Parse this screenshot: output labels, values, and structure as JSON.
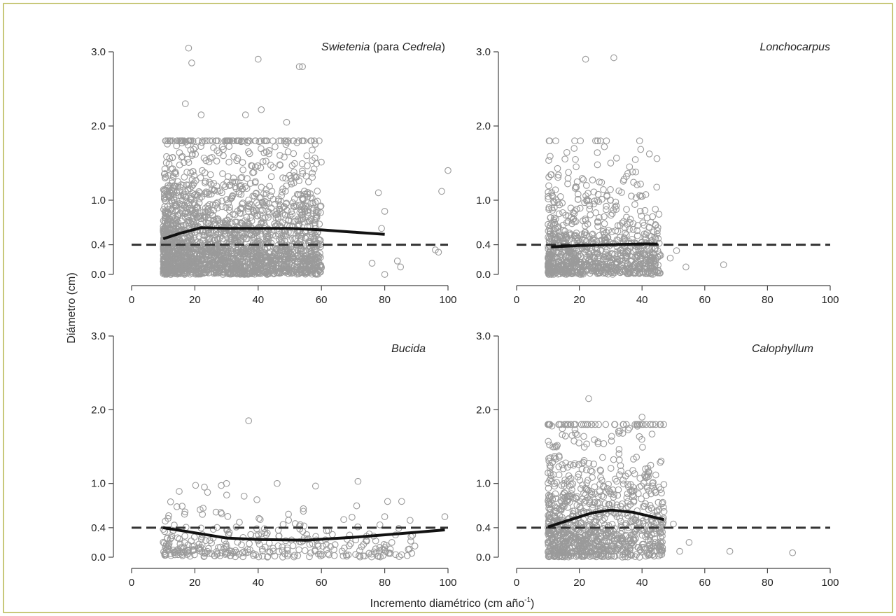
{
  "figure": {
    "ylabel": "Diámetro (cm)",
    "xlabel_main": "Incremento diamétrico (cm año",
    "xlabel_sup": "-1",
    "xlabel_close": ")",
    "point_color": "#9a9a9a",
    "line_color": "#111111",
    "ref_line_color": "#333333",
    "border_color": "#c8c87a"
  },
  "chart_data": [
    {
      "type": "scatter",
      "title_italic": "Swietenia",
      "title_mid": " (para ",
      "title_italic2": "Cedrela",
      "title_end": ")",
      "xlim": [
        0,
        100
      ],
      "ylim": [
        0.0,
        3.0
      ],
      "x_ticks": [
        "0",
        "20",
        "40",
        "60",
        "80",
        "100"
      ],
      "y_ticks": [
        "0.0",
        "0.4",
        "1.0",
        "2.0",
        "3.0"
      ],
      "ref_line_y": 0.4,
      "n_points": 2200,
      "x_range": [
        10,
        60
      ],
      "y_scale": 0.55,
      "outliers": [
        [
          18,
          3.05
        ],
        [
          19,
          2.85
        ],
        [
          40,
          2.9
        ],
        [
          53,
          2.8
        ],
        [
          54,
          2.8
        ],
        [
          17,
          2.3
        ],
        [
          22,
          2.15
        ],
        [
          41,
          2.22
        ],
        [
          36,
          2.15
        ],
        [
          49,
          2.05
        ],
        [
          100,
          1.4
        ],
        [
          98,
          1.12
        ],
        [
          78,
          1.1
        ],
        [
          80,
          0.85
        ],
        [
          79,
          0.62
        ],
        [
          76,
          0.15
        ],
        [
          84,
          0.18
        ],
        [
          85,
          0.1
        ],
        [
          80,
          0.0
        ],
        [
          97,
          0.3
        ],
        [
          96,
          0.33
        ]
      ],
      "smooth": [
        [
          10,
          0.48
        ],
        [
          15,
          0.55
        ],
        [
          22,
          0.63
        ],
        [
          30,
          0.62
        ],
        [
          40,
          0.62
        ],
        [
          50,
          0.62
        ],
        [
          60,
          0.6
        ],
        [
          70,
          0.57
        ],
        [
          80,
          0.54
        ]
      ]
    },
    {
      "type": "scatter",
      "title_italic": "Lonchocarpus",
      "xlim": [
        0,
        100
      ],
      "ylim": [
        0.0,
        3.0
      ],
      "x_ticks": [
        "0",
        "20",
        "40",
        "60",
        "80",
        "100"
      ],
      "y_ticks": [
        "0.0",
        "0.4",
        "1.0",
        "2.0",
        "3.0"
      ],
      "ref_line_y": 0.4,
      "n_points": 900,
      "x_range": [
        10,
        46
      ],
      "y_scale": 0.38,
      "outliers": [
        [
          22,
          2.9
        ],
        [
          31,
          2.92
        ],
        [
          28,
          1.72
        ],
        [
          30,
          1.5
        ],
        [
          36,
          1.45
        ],
        [
          38,
          1.38
        ],
        [
          19,
          1.45
        ],
        [
          54,
          0.1
        ],
        [
          66,
          0.13
        ],
        [
          49,
          0.22
        ],
        [
          51,
          0.32
        ]
      ],
      "smooth": [
        [
          11,
          0.37
        ],
        [
          20,
          0.39
        ],
        [
          30,
          0.4
        ],
        [
          40,
          0.41
        ],
        [
          45,
          0.41
        ]
      ]
    },
    {
      "type": "scatter",
      "title_italic": "Bucida",
      "xlim": [
        0,
        100
      ],
      "ylim": [
        0.0,
        3.0
      ],
      "x_ticks": [
        "0",
        "20",
        "40",
        "60",
        "80",
        "100"
      ],
      "y_ticks": [
        "0.0",
        "0.4",
        "1.0",
        "2.0",
        "3.0"
      ],
      "ref_line_y": 0.4,
      "n_points": 330,
      "x_range": [
        10,
        90
      ],
      "y_scale": 0.22,
      "outliers": [
        [
          37,
          1.85
        ],
        [
          30,
          1.0
        ],
        [
          46,
          1.0
        ],
        [
          23,
          0.95
        ],
        [
          24,
          0.88
        ],
        [
          99,
          0.55
        ],
        [
          88,
          0.5
        ],
        [
          80,
          0.55
        ]
      ],
      "smooth": [
        [
          10,
          0.4
        ],
        [
          20,
          0.33
        ],
        [
          30,
          0.26
        ],
        [
          40,
          0.24
        ],
        [
          55,
          0.23
        ],
        [
          70,
          0.27
        ],
        [
          85,
          0.32
        ],
        [
          99,
          0.37
        ]
      ]
    },
    {
      "type": "scatter",
      "title_italic": "Calophyllum",
      "xlim": [
        0,
        100
      ],
      "ylim": [
        0.0,
        3.0
      ],
      "x_ticks": [
        "0",
        "20",
        "40",
        "60",
        "80",
        "100"
      ],
      "y_ticks": [
        "0.0",
        "0.4",
        "1.0",
        "2.0",
        "3.0"
      ],
      "ref_line_y": 0.4,
      "n_points": 1000,
      "x_range": [
        10,
        47
      ],
      "y_scale": 0.58,
      "outliers": [
        [
          23,
          2.15
        ],
        [
          40,
          1.9
        ],
        [
          22,
          1.8
        ],
        [
          24,
          1.8
        ],
        [
          47,
          0.62
        ],
        [
          55,
          0.2
        ],
        [
          68,
          0.08
        ],
        [
          88,
          0.06
        ],
        [
          52,
          0.08
        ],
        [
          50,
          0.45
        ]
      ],
      "smooth": [
        [
          10,
          0.41
        ],
        [
          18,
          0.52
        ],
        [
          24,
          0.6
        ],
        [
          30,
          0.64
        ],
        [
          37,
          0.61
        ],
        [
          43,
          0.55
        ],
        [
          47,
          0.51
        ]
      ]
    }
  ]
}
